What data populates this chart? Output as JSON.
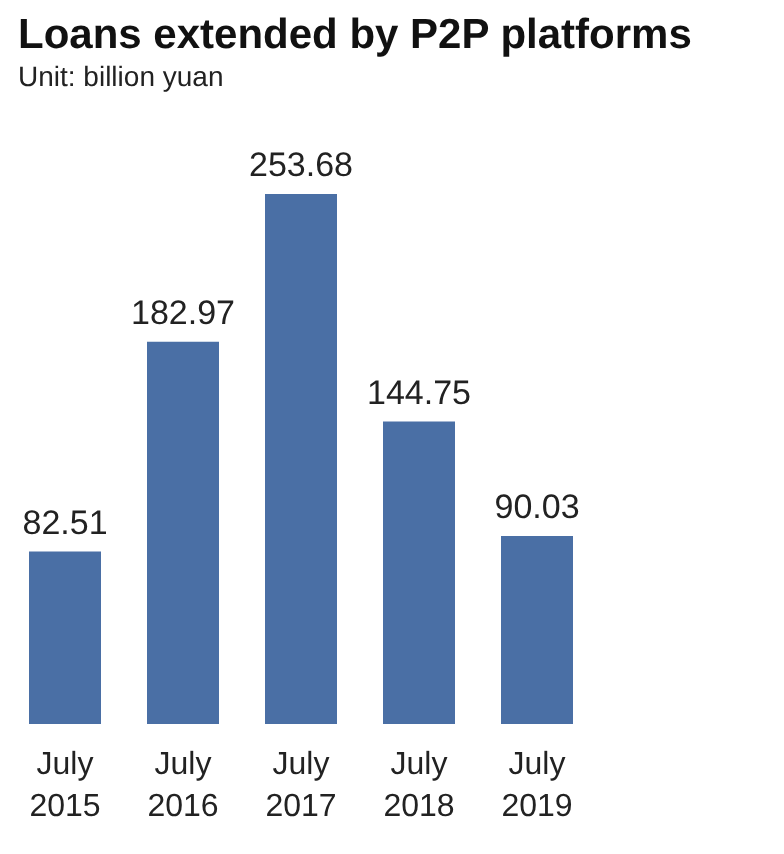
{
  "chart_data": {
    "type": "bar",
    "title": "Loans extended by P2P platforms",
    "subtitle": "Unit: billion yuan",
    "categories": [
      "July\n2015",
      "July\n2016",
      "July\n2017",
      "July\n2018",
      "July\n2019"
    ],
    "values": [
      82.51,
      182.97,
      253.68,
      144.75,
      90.03
    ],
    "color": "#4a6fa5",
    "data_labels": true
  }
}
